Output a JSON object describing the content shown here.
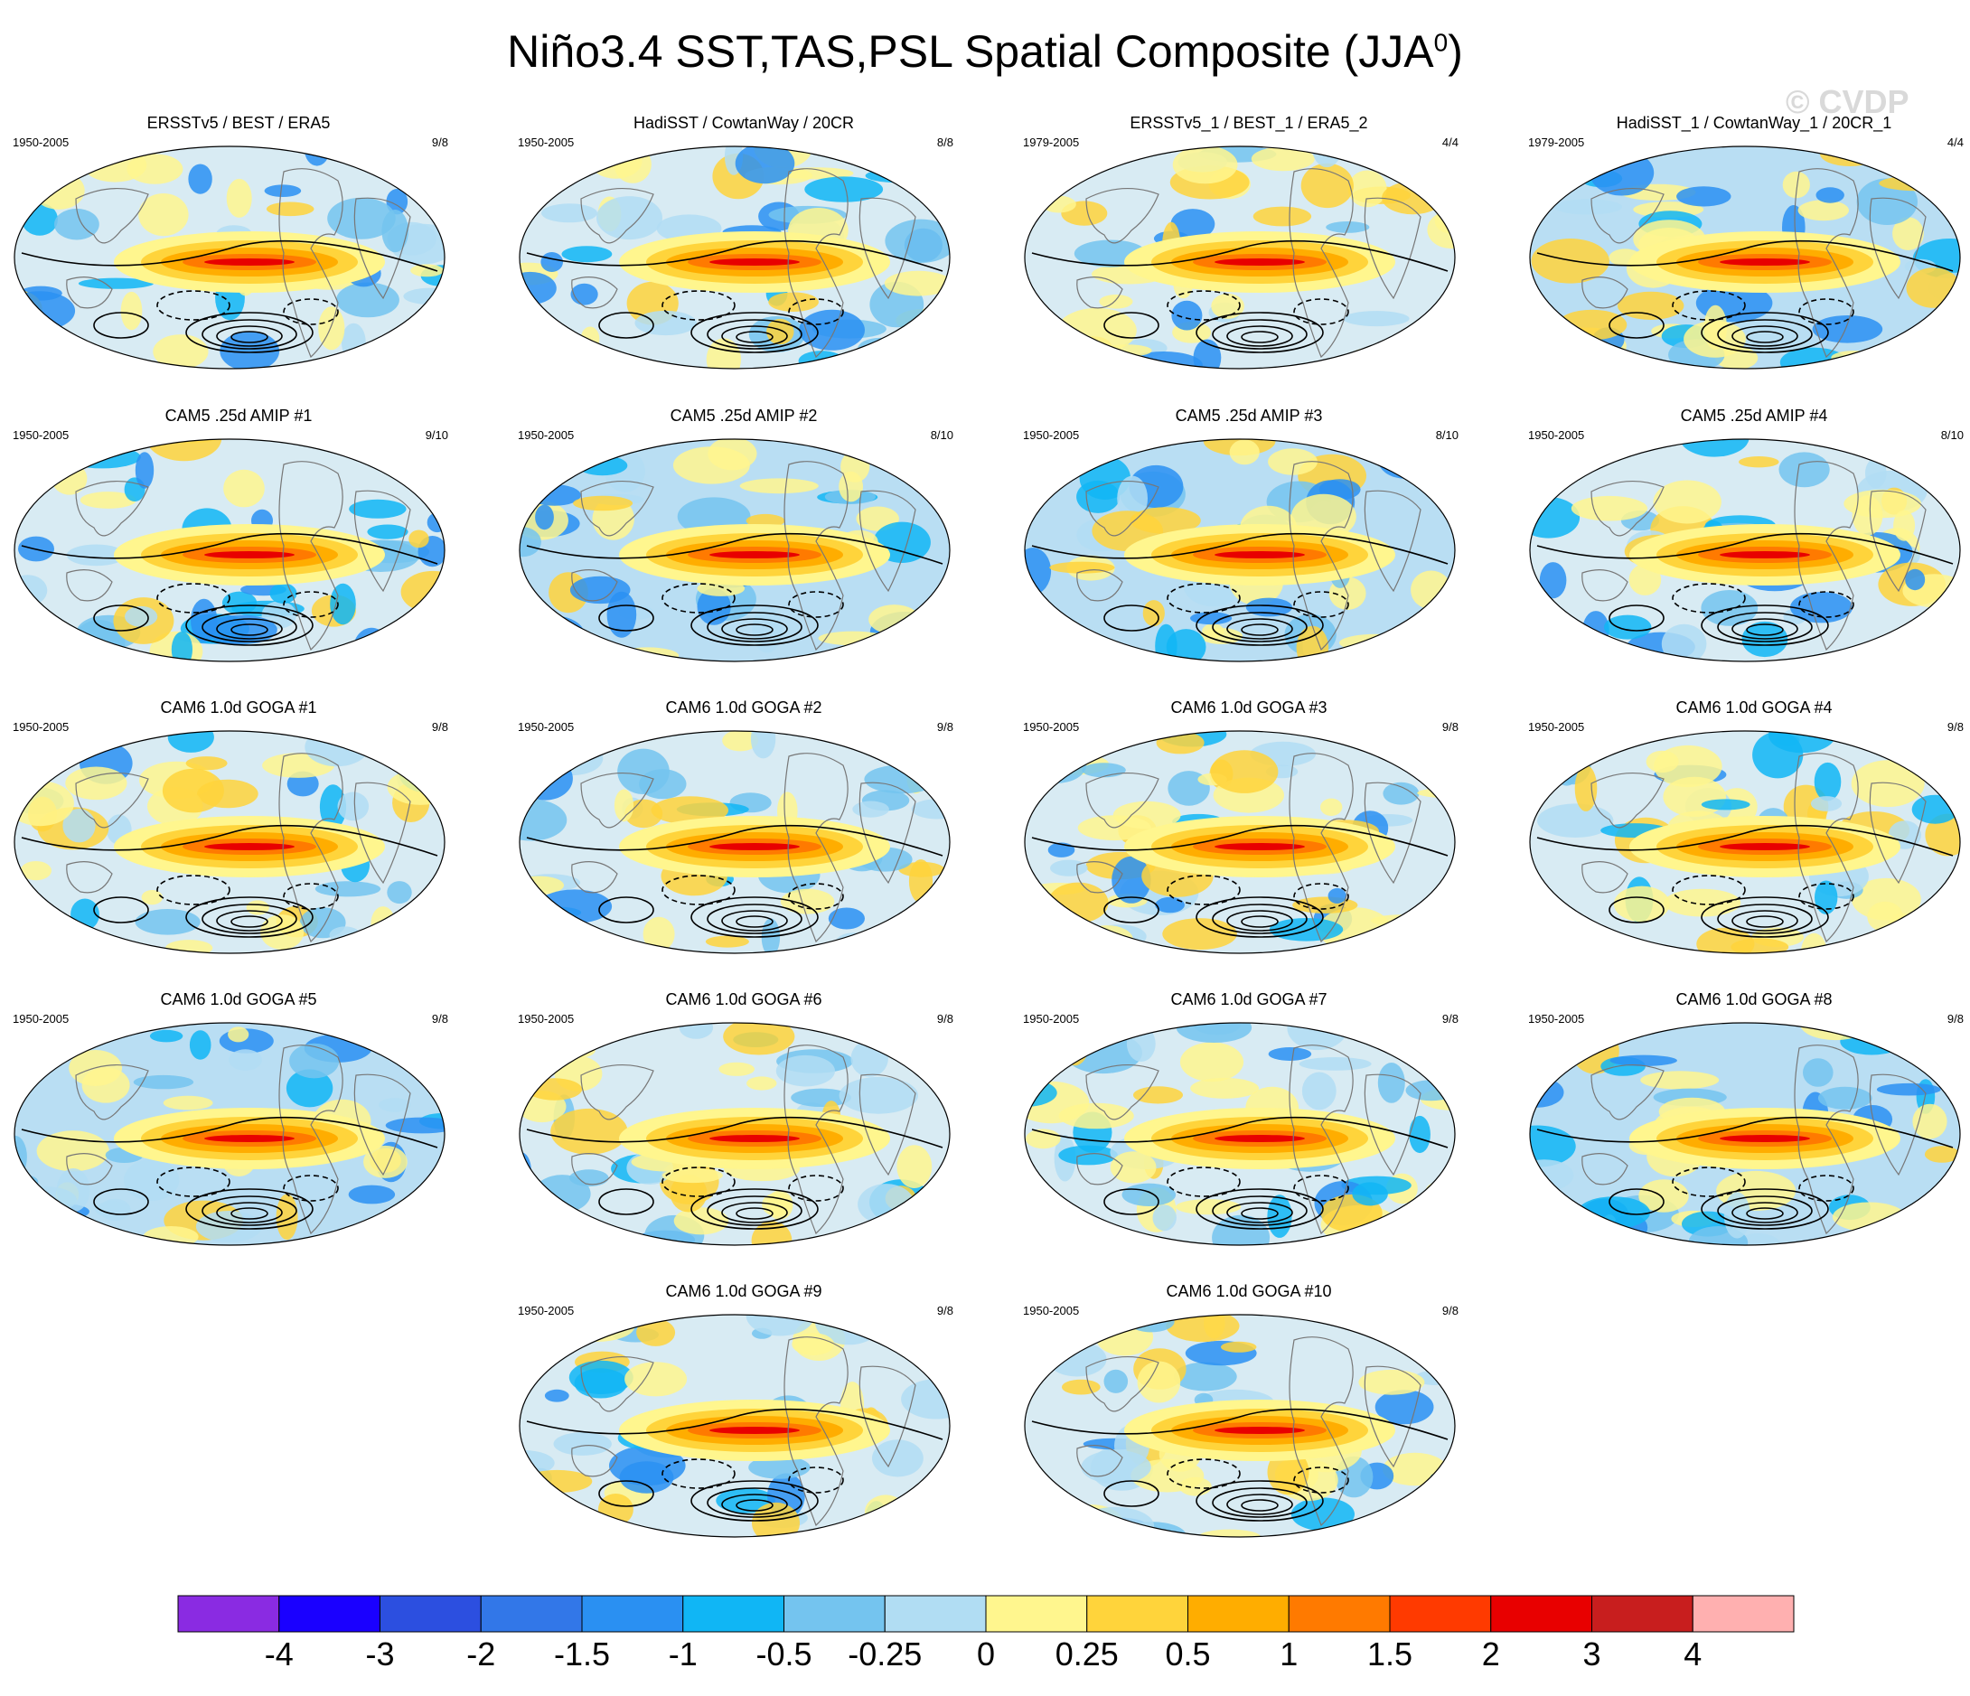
{
  "figure": {
    "title": "Niño3.4 SST,TAS,PSL Spatial Composite (JJA",
    "title_sup": "0",
    "title_close": ")",
    "watermark": "© CVDP"
  },
  "panels": [
    {
      "title": "ERSSTv5 / BEST / ERA5",
      "period": "1950-2005",
      "ratio": "9/8",
      "ocean_tint": "mixed"
    },
    {
      "title": "HadiSST / CowtanWay / 20CR",
      "period": "1950-2005",
      "ratio": "8/8",
      "ocean_tint": "mixed"
    },
    {
      "title": "ERSSTv5_1 / BEST_1 / ERA5_2",
      "period": "1979-2005",
      "ratio": "4/4",
      "ocean_tint": "mixed"
    },
    {
      "title": "HadiSST_1 / CowtanWay_1 / 20CR_1",
      "period": "1979-2005",
      "ratio": "4/4",
      "ocean_tint": "cool"
    },
    {
      "title": "CAM5 .25d AMIP #1",
      "period": "1950-2005",
      "ratio": "9/10",
      "ocean_tint": "mixed"
    },
    {
      "title": "CAM5 .25d AMIP #2",
      "period": "1950-2005",
      "ratio": "8/10",
      "ocean_tint": "cool"
    },
    {
      "title": "CAM5 .25d AMIP #3",
      "period": "1950-2005",
      "ratio": "8/10",
      "ocean_tint": "cool"
    },
    {
      "title": "CAM5 .25d AMIP #4",
      "period": "1950-2005",
      "ratio": "8/10",
      "ocean_tint": "mixed"
    },
    {
      "title": "CAM6 1.0d GOGA #1",
      "period": "1950-2005",
      "ratio": "9/8",
      "ocean_tint": "mixed"
    },
    {
      "title": "CAM6 1.0d GOGA #2",
      "period": "1950-2005",
      "ratio": "9/8",
      "ocean_tint": "mixed"
    },
    {
      "title": "CAM6 1.0d GOGA #3",
      "period": "1950-2005",
      "ratio": "9/8",
      "ocean_tint": "mixed"
    },
    {
      "title": "CAM6 1.0d GOGA #4",
      "period": "1950-2005",
      "ratio": "9/8",
      "ocean_tint": "mixed"
    },
    {
      "title": "CAM6 1.0d GOGA #5",
      "period": "1950-2005",
      "ratio": "9/8",
      "ocean_tint": "cool"
    },
    {
      "title": "CAM6 1.0d GOGA #6",
      "period": "1950-2005",
      "ratio": "9/8",
      "ocean_tint": "mixed"
    },
    {
      "title": "CAM6 1.0d GOGA #7",
      "period": "1950-2005",
      "ratio": "9/8",
      "ocean_tint": "mixed"
    },
    {
      "title": "CAM6 1.0d GOGA #8",
      "period": "1950-2005",
      "ratio": "9/8",
      "ocean_tint": "cool"
    },
    {
      "title": "CAM6 1.0d GOGA #9",
      "period": "1950-2005",
      "ratio": "9/8",
      "ocean_tint": "mixed"
    },
    {
      "title": "CAM6 1.0d GOGA #10",
      "period": "1950-2005",
      "ratio": "9/8",
      "ocean_tint": "mixed"
    }
  ],
  "colorbar": {
    "labels": [
      "-4",
      "-3",
      "-2",
      "-1.5",
      "-1",
      "-0.5",
      "-0.25",
      "0",
      "0.25",
      "0.5",
      "1",
      "1.5",
      "2",
      "3",
      "4"
    ],
    "colors": [
      "#8a2be2",
      "#1a00ff",
      "#2c4fe0",
      "#3277e8",
      "#2a90f2",
      "#10b6f5",
      "#74c4ef",
      "#b1ddf3",
      "#fff68e",
      "#ffd43b",
      "#ffad00",
      "#ff7a00",
      "#ff3a00",
      "#e80000",
      "#c81e1e",
      "#ffb0b0"
    ]
  }
}
